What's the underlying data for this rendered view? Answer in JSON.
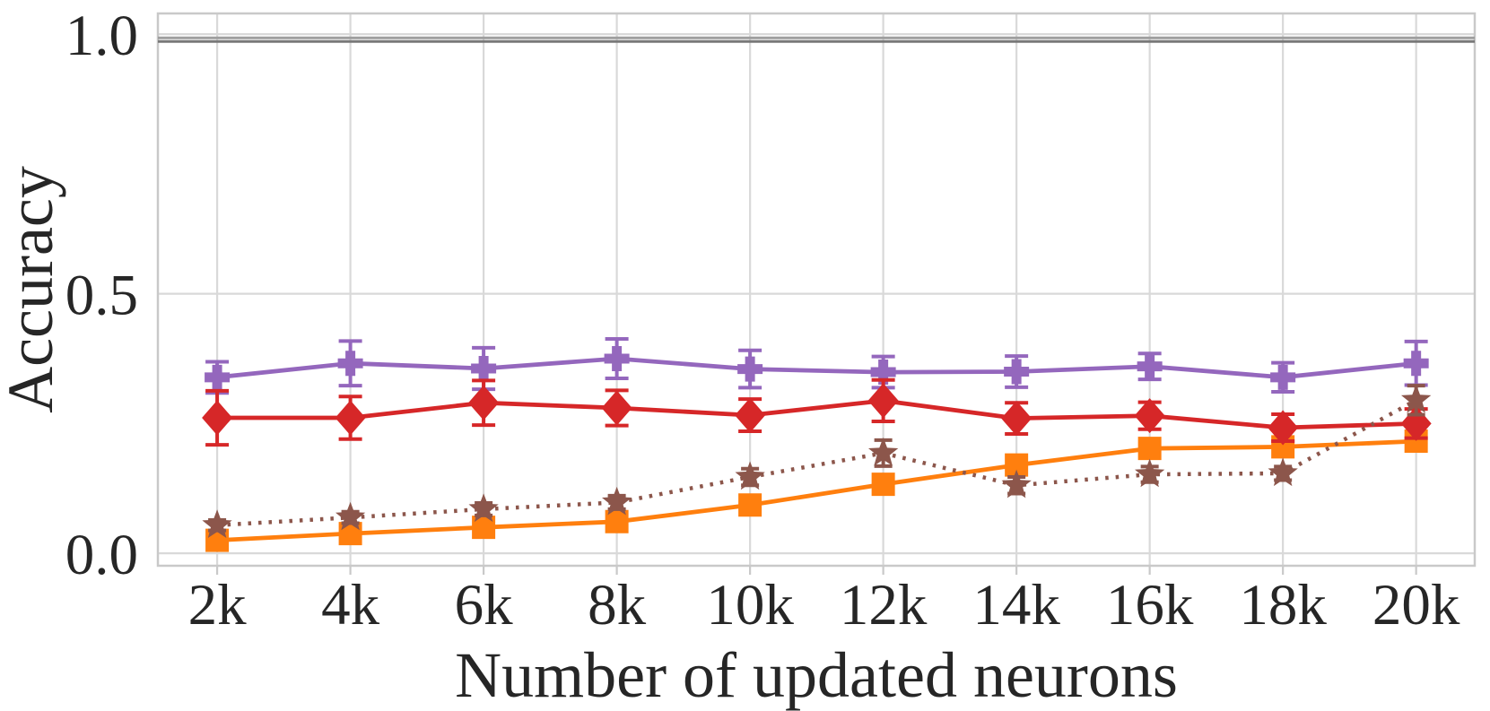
{
  "chart_data": {
    "type": "line",
    "title": "",
    "xlabel": "Number of updated neurons",
    "ylabel": "Accuracy",
    "categories": [
      "2k",
      "4k",
      "6k",
      "8k",
      "10k",
      "12k",
      "14k",
      "16k",
      "18k",
      "20k"
    ],
    "x_values": [
      2000,
      4000,
      6000,
      8000,
      10000,
      12000,
      14000,
      16000,
      18000,
      20000
    ],
    "ytick_labels": [
      "0.0",
      "0.5",
      "1.0"
    ],
    "ytick_values": [
      0.0,
      0.5,
      1.0
    ],
    "xlim": [
      1110,
      20880
    ],
    "ylim": [
      -0.024,
      1.04
    ],
    "grid": true,
    "legend": "none",
    "background_color": "#ffffff",
    "grid_color": "#d9d9d9",
    "spine_color": "#c9c9c9",
    "text_color": "#262626",
    "baselines": [
      {
        "name": "gray-baseline-upper",
        "value": 0.993,
        "color": "#9e9e9e"
      },
      {
        "name": "gray-baseline-lower",
        "value": 0.986,
        "color": "#787878"
      }
    ],
    "series": [
      {
        "name": "purple-plus",
        "color": "#9467bd",
        "marker": "plus",
        "linestyle": "solid",
        "values": [
          0.339,
          0.366,
          0.356,
          0.375,
          0.355,
          0.349,
          0.35,
          0.36,
          0.339,
          0.366
        ],
        "errors": [
          0.03,
          0.043,
          0.04,
          0.038,
          0.036,
          0.03,
          0.03,
          0.025,
          0.028,
          0.042
        ]
      },
      {
        "name": "red-diamond",
        "color": "#d62728",
        "marker": "diamond",
        "linestyle": "solid",
        "values": [
          0.261,
          0.261,
          0.29,
          0.28,
          0.266,
          0.294,
          0.26,
          0.265,
          0.242,
          0.25
        ],
        "errors": [
          0.052,
          0.041,
          0.043,
          0.034,
          0.031,
          0.04,
          0.03,
          0.026,
          0.026,
          0.028
        ]
      },
      {
        "name": "orange-square",
        "color": "#ff7f0e",
        "marker": "square",
        "linestyle": "solid",
        "values": [
          0.025,
          0.038,
          0.05,
          0.061,
          0.093,
          0.133,
          0.17,
          0.202,
          0.205,
          0.216
        ],
        "errors": [
          0.006,
          0.007,
          0.008,
          0.009,
          0.011,
          0.012,
          0.015,
          0.016,
          0.014,
          0.015
        ]
      },
      {
        "name": "brown-star-dotted",
        "color": "#8c564b",
        "marker": "star",
        "linestyle": "dotted",
        "values": [
          0.054,
          0.069,
          0.085,
          0.098,
          0.147,
          0.193,
          0.131,
          0.152,
          0.154,
          0.295
        ],
        "errors": [
          0.01,
          0.011,
          0.012,
          0.013,
          0.016,
          0.025,
          0.016,
          0.015,
          0.013,
          0.028
        ]
      }
    ]
  }
}
